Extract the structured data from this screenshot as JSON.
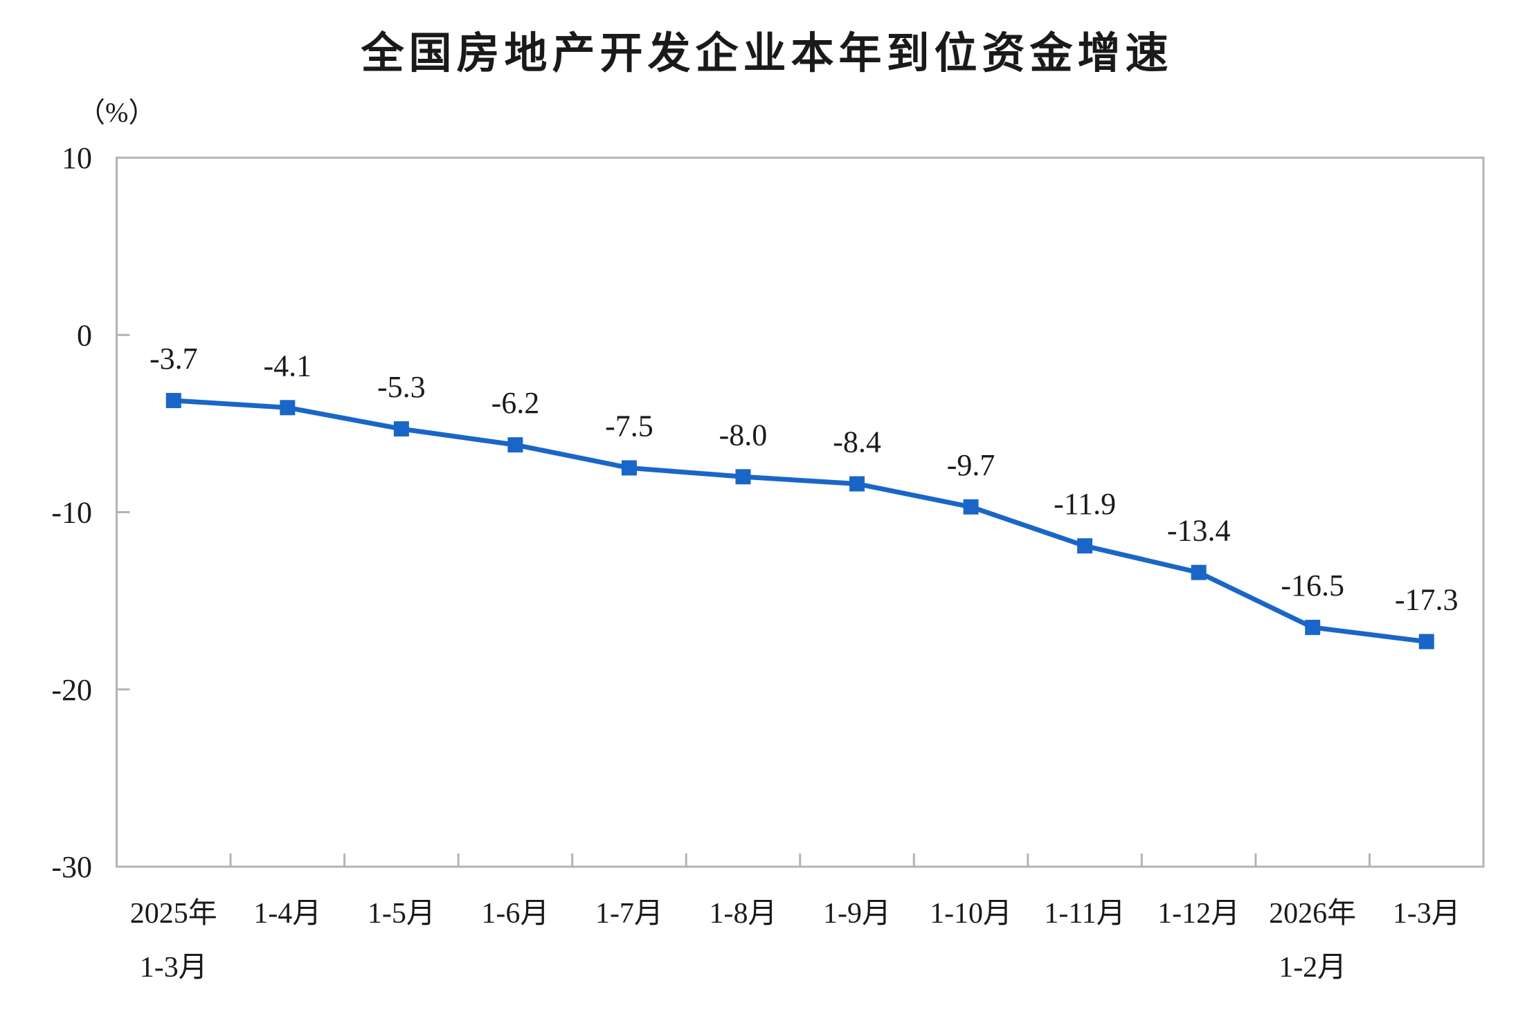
{
  "chart_data": {
    "type": "line",
    "title": "全国房地产开发企业本年到位资金增速",
    "unit_label": "（%）",
    "categories": [
      "2025年\n1-3月",
      "1-4月",
      "1-5月",
      "1-6月",
      "1-7月",
      "1-8月",
      "1-9月",
      "1-10月",
      "1-11月",
      "1-12月",
      "2026年\n1-2月",
      "1-3月"
    ],
    "values": [
      -3.7,
      -4.1,
      -5.3,
      -6.2,
      -7.5,
      -8.0,
      -8.4,
      -9.7,
      -11.9,
      -13.4,
      -16.5,
      -17.3
    ],
    "data_labels": [
      "-3.7",
      "-4.1",
      "-5.3",
      "-6.2",
      "-7.5",
      "-8.0",
      "-8.4",
      "-9.7",
      "-11.9",
      "-13.4",
      "-16.5",
      "-17.3"
    ],
    "ylim": [
      -30,
      10
    ],
    "yticks": [
      10,
      0,
      -10,
      -20,
      -30
    ],
    "ytick_labels": [
      "10",
      "0",
      "-10",
      "-20",
      "-30"
    ],
    "grid": false,
    "legend_position": "none",
    "marker": "square",
    "colors": {
      "series": "#1a66c8",
      "axis": "#b3b3b3",
      "text": "#1a1a1a",
      "background": "#ffffff"
    }
  }
}
